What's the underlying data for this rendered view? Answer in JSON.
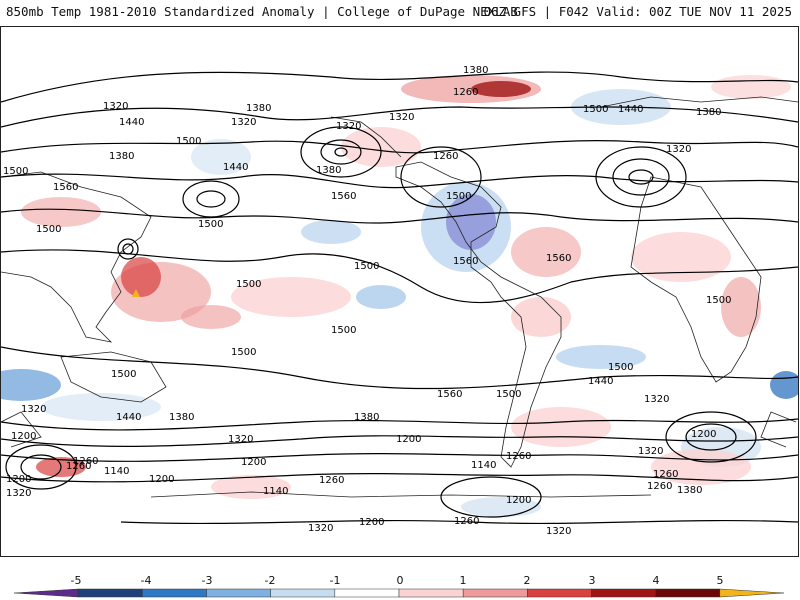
{
  "header": {
    "left_title": "850mb Temp 1981-2010 Standardized Anomaly | College of DuPage NEXLAB",
    "right_title": "06Z GFS | F042 Valid: 00Z TUE NOV 11 2025"
  },
  "contour_labels": [
    "1380",
    "1260",
    "1320",
    "1440",
    "1380",
    "1320",
    "1500",
    "1440",
    "1380",
    "1320",
    "1500",
    "1440",
    "1320",
    "1380",
    "1560",
    "1500",
    "1500",
    "1260",
    "1560",
    "1380",
    "1500",
    "1560",
    "1560",
    "1500",
    "1500",
    "1500",
    "1500",
    "1500",
    "1500",
    "1500",
    "1560",
    "1500",
    "1440",
    "1500",
    "1320",
    "1440",
    "1380",
    "1380",
    "1320",
    "1200",
    "1260",
    "1320",
    "1260",
    "1140",
    "1200",
    "1320",
    "1200",
    "1200",
    "1260",
    "1200",
    "1140",
    "1260",
    "1140",
    "1260",
    "1380",
    "1200",
    "1320",
    "1260",
    "1200",
    "1260",
    "1320",
    "1320",
    "1200",
    "1320"
  ],
  "colorbar": {
    "ticks": [
      "-5",
      "-4",
      "-3",
      "-2",
      "-1",
      "0",
      "1",
      "2",
      "3",
      "4",
      "5"
    ],
    "colors": [
      "#5b2c8c",
      "#1f3f7a",
      "#2e78c4",
      "#7fb0df",
      "#c6dcf0",
      "#ffffff",
      "#fbd3d3",
      "#ee9a9a",
      "#d94040",
      "#a01616",
      "#6a0808",
      "#f2b418"
    ]
  }
}
